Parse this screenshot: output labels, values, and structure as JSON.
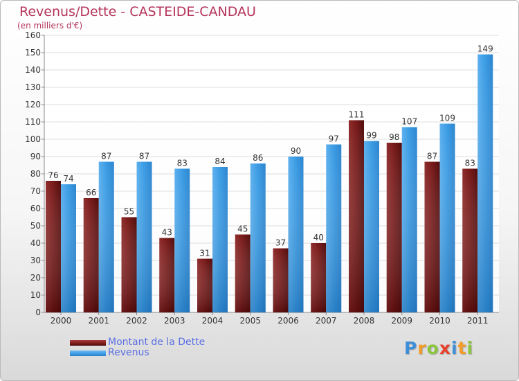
{
  "header": {
    "title": "Revenus/Dette - CASTEIDE-CANDAU",
    "subtitle": "(en milliers d'€)"
  },
  "brand": {
    "logo_letters": [
      "P",
      "r",
      "o",
      "x",
      "i",
      "t",
      "i"
    ],
    "logo_colors": [
      "#3f8fd8",
      "#f29b26",
      "#8cc63f",
      "#e8412c",
      "#3f8fd8",
      "#f29b26",
      "#8cc63f"
    ]
  },
  "colors": {
    "debt": "#7a1a1a",
    "revenue": "#3a9be3",
    "title": "#b5345a",
    "legend_text": "#5b6fe3"
  },
  "chart_data": {
    "type": "bar",
    "title": "Revenus/Dette - CASTEIDE-CANDAU",
    "subtitle": "(en milliers d'€)",
    "categories": [
      "2000",
      "2001",
      "2002",
      "2003",
      "2004",
      "2005",
      "2006",
      "2007",
      "2008",
      "2009",
      "2010",
      "2011"
    ],
    "series": [
      {
        "name": "Montant de la Dette",
        "values": [
          76,
          66,
          55,
          43,
          31,
          45,
          37,
          40,
          111,
          98,
          87,
          83
        ]
      },
      {
        "name": "Revenus",
        "values": [
          74,
          87,
          87,
          83,
          84,
          86,
          90,
          97,
          99,
          107,
          109,
          149
        ]
      }
    ],
    "ylim": [
      0,
      160
    ],
    "yticks": [
      0,
      10,
      20,
      30,
      40,
      50,
      60,
      70,
      80,
      90,
      100,
      110,
      120,
      130,
      140,
      150,
      160
    ],
    "grid": true,
    "data_labels": true,
    "legend_position": "bottom-left"
  }
}
